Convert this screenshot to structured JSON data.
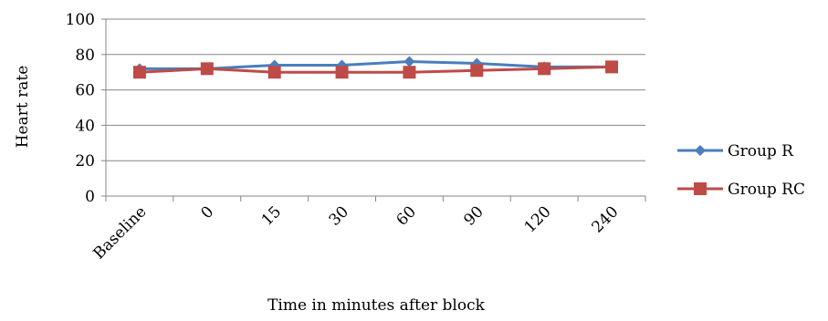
{
  "chart_data": {
    "type": "line",
    "title": "",
    "xlabel": "Time in minutes after block",
    "ylabel": "Heart rate",
    "categories": [
      "Baseline",
      "0",
      "15",
      "30",
      "60",
      "90",
      "120",
      "240"
    ],
    "ylim": [
      0,
      100
    ],
    "yticks": [
      "0",
      "20",
      "40",
      "60",
      "80",
      "100"
    ],
    "grid": "horizontal",
    "legend_position": "right",
    "series": [
      {
        "name": "Group R",
        "color": "#4a7ebb",
        "marker": "diamond",
        "values": [
          72,
          72,
          74,
          74,
          76,
          75,
          73,
          73
        ]
      },
      {
        "name": "Group RC",
        "color": "#be4b48",
        "marker": "square",
        "values": [
          70,
          72,
          70,
          70,
          70,
          71,
          72,
          73
        ]
      }
    ]
  }
}
